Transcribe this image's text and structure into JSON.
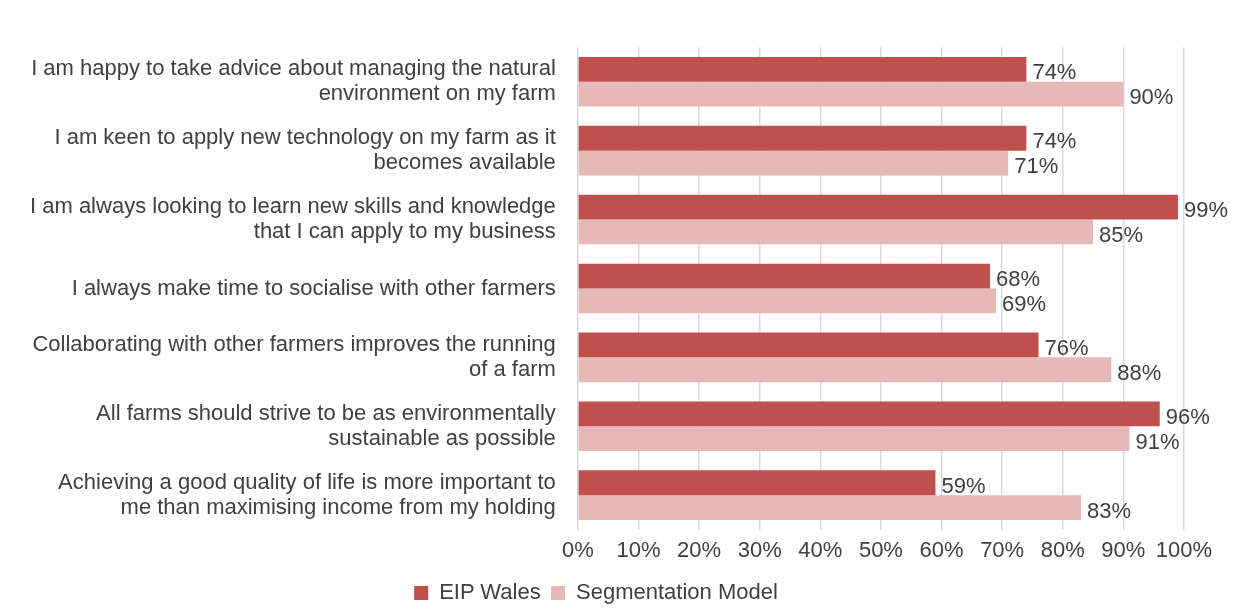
{
  "chart_data": {
    "type": "bar",
    "orientation": "horizontal",
    "categories": [
      "I am happy to take advice about managing the natural environment on my farm",
      "I am keen to apply new technology on my farm as it becomes available",
      "I am always looking to learn new skills and knowledge that I can apply to my business",
      "I always make time to socialise with other farmers",
      "Collaborating with other farmers improves the running of a farm",
      "All farms should strive to be as environmentally sustainable as possible",
      "Achieving a good quality of life is more important to me than maximising income from my holding"
    ],
    "series": [
      {
        "name": "EIP Wales",
        "color": "#c0504d",
        "values": [
          74,
          74,
          99,
          68,
          76,
          96,
          59
        ],
        "value_labels": [
          "74%",
          "74%",
          "99%",
          "68%",
          "76%",
          "96%",
          "59%"
        ]
      },
      {
        "name": "Segmentation Model",
        "color": "#e6b9b8",
        "values": [
          90,
          71,
          85,
          69,
          88,
          91,
          83
        ],
        "value_labels": [
          "90%",
          "71%",
          "85%",
          "69%",
          "88%",
          "91%",
          "83%"
        ]
      }
    ],
    "xlim": [
      0,
      100
    ],
    "xticks": [
      {
        "value": 0,
        "label": "0%"
      },
      {
        "value": 10,
        "label": "10%"
      },
      {
        "value": 20,
        "label": "20%"
      },
      {
        "value": 30,
        "label": "30%"
      },
      {
        "value": 40,
        "label": "40%"
      },
      {
        "value": 50,
        "label": "50%"
      },
      {
        "value": 60,
        "label": "60%"
      },
      {
        "value": 70,
        "label": "70%"
      },
      {
        "value": 80,
        "label": "80%"
      },
      {
        "value": 90,
        "label": "90%"
      },
      {
        "value": 100,
        "label": "100%"
      }
    ],
    "grid": "x",
    "legend": "bottom"
  }
}
